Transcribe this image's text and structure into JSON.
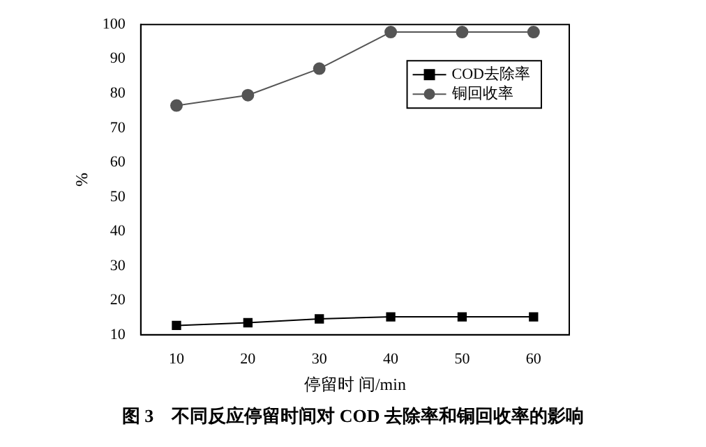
{
  "chart_data": {
    "type": "line",
    "title": "图 3　不同反应停留时间对 COD 去除率和铜回收率的影响",
    "xlabel": "停留时 间/min",
    "ylabel": "%",
    "x": [
      10,
      20,
      30,
      40,
      50,
      60
    ],
    "series": [
      {
        "name": "COD去除率",
        "color": "#000000",
        "marker": "square",
        "values": [
          12.7,
          13.5,
          14.6,
          15.2,
          15.2,
          15.2
        ]
      },
      {
        "name": "铜回收率",
        "color": "#555555",
        "marker": "circle",
        "values": [
          76.5,
          79.5,
          87.2,
          97.8,
          97.8,
          97.8
        ]
      }
    ],
    "xlim": [
      5,
      65
    ],
    "xticks": [
      10,
      20,
      30,
      40,
      50,
      60
    ],
    "ylim": [
      10,
      100
    ],
    "yticks": [
      10,
      20,
      30,
      40,
      50,
      60,
      70,
      80,
      90,
      100
    ],
    "grid": false,
    "legend": "top right",
    "line_style": "solid"
  }
}
